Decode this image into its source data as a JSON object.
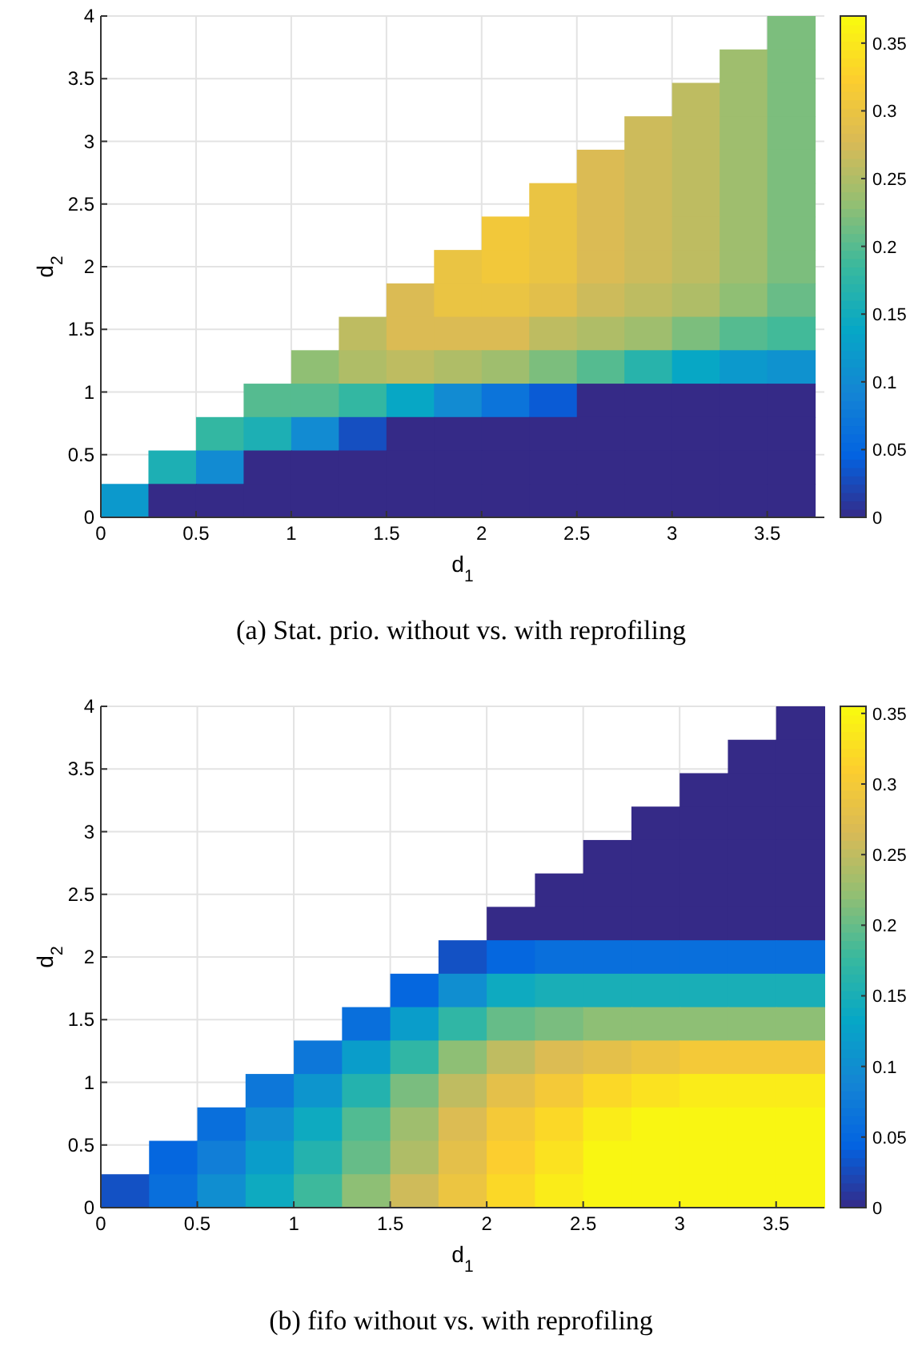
{
  "chart_data": [
    {
      "type": "heatmap",
      "xlabel": "d$_{1}$",
      "ylabel": "d$_{2}$",
      "annotations": [
        "(a) Stat. prio. without vs. with reprofiling"
      ],
      "grid": true,
      "x": [
        0.125,
        0.375,
        0.625,
        0.875,
        1.125,
        1.375,
        1.625,
        1.875,
        2.125,
        2.375,
        2.625,
        2.875,
        3.125,
        3.375,
        3.625
      ],
      "xlim": [
        0,
        3.8
      ],
      "xticks": [
        0,
        0.5,
        1,
        1.5,
        2,
        2.5,
        3,
        3.5
      ],
      "ylim": [
        0,
        4
      ],
      "yticks": [
        0,
        0.5,
        1,
        1.5,
        2,
        2.5,
        3,
        3.5,
        4
      ],
      "clim": [
        0,
        0.37
      ],
      "cticks": [
        0,
        0.05,
        0.1,
        0.15,
        0.2,
        0.25,
        0.3,
        0.35
      ],
      "cells": [
        [
          null,
          null,
          null,
          null,
          null,
          null,
          null,
          null,
          null,
          null,
          null,
          null,
          null,
          null,
          0.22
        ],
        [
          null,
          null,
          null,
          null,
          null,
          null,
          null,
          null,
          null,
          null,
          null,
          null,
          null,
          0.24,
          0.22
        ],
        [
          null,
          null,
          null,
          null,
          null,
          null,
          null,
          null,
          null,
          null,
          null,
          null,
          0.26,
          0.24,
          0.22
        ],
        [
          null,
          null,
          null,
          null,
          null,
          null,
          null,
          null,
          null,
          null,
          null,
          0.27,
          0.26,
          0.24,
          0.22
        ],
        [
          null,
          null,
          null,
          null,
          null,
          null,
          null,
          null,
          null,
          null,
          0.28,
          0.27,
          0.26,
          0.24,
          0.22
        ],
        [
          null,
          null,
          null,
          null,
          null,
          null,
          null,
          null,
          null,
          0.3,
          0.28,
          0.27,
          0.26,
          0.24,
          0.22
        ],
        [
          null,
          null,
          null,
          null,
          null,
          null,
          null,
          null,
          0.31,
          0.3,
          0.28,
          0.27,
          0.26,
          0.24,
          0.22
        ],
        [
          null,
          null,
          null,
          null,
          null,
          null,
          null,
          0.3,
          0.31,
          0.3,
          0.28,
          0.27,
          0.26,
          0.24,
          0.22
        ],
        [
          null,
          null,
          null,
          null,
          null,
          null,
          0.28,
          0.3,
          0.3,
          0.29,
          0.27,
          0.26,
          0.25,
          0.23,
          0.21
        ],
        [
          null,
          null,
          null,
          null,
          null,
          0.26,
          0.28,
          0.28,
          0.28,
          0.26,
          0.25,
          0.24,
          0.22,
          0.2,
          0.19
        ],
        [
          null,
          null,
          null,
          null,
          0.23,
          0.25,
          0.26,
          0.25,
          0.24,
          0.22,
          0.2,
          0.17,
          0.14,
          0.12,
          0.11
        ],
        [
          null,
          null,
          null,
          0.2,
          0.2,
          0.18,
          0.14,
          0.1,
          0.07,
          0.04,
          0,
          0,
          0,
          0,
          0
        ],
        [
          null,
          null,
          0.18,
          0.16,
          0.1,
          0.03,
          0,
          0,
          0,
          0,
          0,
          0,
          0,
          0,
          0
        ],
        [
          null,
          0.16,
          0.1,
          0,
          0,
          0,
          0,
          0,
          0,
          0,
          0,
          0,
          0,
          0,
          0
        ],
        [
          0.12,
          0,
          0,
          0,
          0,
          0,
          0,
          0,
          0,
          0,
          0,
          0,
          0,
          0,
          0
        ]
      ]
    },
    {
      "type": "heatmap",
      "xlabel": "d$_{1}$",
      "ylabel": "d$_{2}$",
      "annotations": [
        "(b) fifo without vs. with reprofiling"
      ],
      "grid": true,
      "x": [
        0.125,
        0.375,
        0.625,
        0.875,
        1.125,
        1.375,
        1.625,
        1.875,
        2.125,
        2.375,
        2.625,
        2.875,
        3.125,
        3.375,
        3.625
      ],
      "xlim": [
        0,
        3.75
      ],
      "xticks": [
        0,
        0.5,
        1,
        1.5,
        2,
        2.5,
        3,
        3.5
      ],
      "ylim": [
        0,
        4
      ],
      "yticks": [
        0,
        0.5,
        1,
        1.5,
        2,
        2.5,
        3,
        3.5,
        4
      ],
      "clim": [
        0,
        0.355
      ],
      "cticks": [
        0,
        0.05,
        0.1,
        0.15,
        0.2,
        0.25,
        0.3,
        0.35
      ],
      "cells": [
        [
          null,
          null,
          null,
          null,
          null,
          null,
          null,
          null,
          null,
          null,
          null,
          null,
          null,
          null,
          0
        ],
        [
          null,
          null,
          null,
          null,
          null,
          null,
          null,
          null,
          null,
          null,
          null,
          null,
          null,
          0,
          0
        ],
        [
          null,
          null,
          null,
          null,
          null,
          null,
          null,
          null,
          null,
          null,
          null,
          null,
          0,
          0,
          0
        ],
        [
          null,
          null,
          null,
          null,
          null,
          null,
          null,
          null,
          null,
          null,
          null,
          0,
          0,
          0,
          0
        ],
        [
          null,
          null,
          null,
          null,
          null,
          null,
          null,
          null,
          null,
          null,
          0,
          0,
          0,
          0,
          0
        ],
        [
          null,
          null,
          null,
          null,
          null,
          null,
          null,
          null,
          null,
          0,
          0,
          0,
          0,
          0,
          0
        ],
        [
          null,
          null,
          null,
          null,
          null,
          null,
          null,
          null,
          0,
          0,
          0,
          0,
          0,
          0,
          0
        ],
        [
          null,
          null,
          null,
          null,
          null,
          null,
          null,
          0.03,
          0.05,
          0.06,
          0.06,
          0.06,
          0.06,
          0.06,
          0.06
        ],
        [
          null,
          null,
          null,
          null,
          null,
          null,
          0.05,
          0.1,
          0.14,
          0.15,
          0.15,
          0.15,
          0.15,
          0.15,
          0.15
        ],
        [
          null,
          null,
          null,
          null,
          null,
          0.06,
          0.12,
          0.17,
          0.2,
          0.21,
          0.22,
          0.22,
          0.22,
          0.22,
          0.22
        ],
        [
          null,
          null,
          null,
          null,
          0.07,
          0.12,
          0.17,
          0.22,
          0.25,
          0.27,
          0.28,
          0.29,
          0.3,
          0.3,
          0.3
        ],
        [
          null,
          null,
          null,
          0.07,
          0.11,
          0.16,
          0.21,
          0.25,
          0.28,
          0.3,
          0.32,
          0.33,
          0.34,
          0.34,
          0.34
        ],
        [
          null,
          null,
          0.06,
          0.1,
          0.14,
          0.19,
          0.23,
          0.27,
          0.3,
          0.32,
          0.34,
          0.35,
          0.35,
          0.35,
          0.35
        ],
        [
          null,
          0.05,
          0.08,
          0.12,
          0.16,
          0.2,
          0.24,
          0.28,
          0.31,
          0.33,
          0.35,
          0.35,
          0.35,
          0.35,
          0.35
        ],
        [
          0.03,
          0.06,
          0.1,
          0.14,
          0.18,
          0.22,
          0.26,
          0.29,
          0.32,
          0.34,
          0.35,
          0.35,
          0.35,
          0.35,
          0.35
        ]
      ]
    }
  ]
}
